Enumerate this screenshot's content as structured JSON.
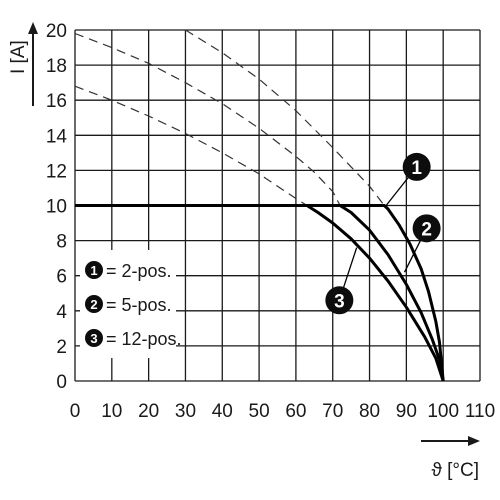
{
  "chart_data": {
    "type": "line",
    "xlabel": "ϑ [°C]",
    "ylabel": "I [A]",
    "xlim": [
      0,
      110
    ],
    "ylim": [
      0,
      20
    ],
    "x_ticks": [
      "0",
      "10",
      "20",
      "30",
      "40",
      "50",
      "60",
      "70",
      "80",
      "90",
      "100",
      "110"
    ],
    "y_ticks": [
      "0",
      "2",
      "4",
      "6",
      "8",
      "10",
      "12",
      "14",
      "16",
      "18",
      "20"
    ],
    "grid": true,
    "legend": [
      {
        "marker": "1",
        "label": "= 2-pos."
      },
      {
        "marker": "2",
        "label": "= 5-pos."
      },
      {
        "marker": "3",
        "label": "= 12-pos."
      }
    ],
    "legend_position": "lower-left",
    "colors": {
      "curves": "#000000",
      "grid": "#1a1a1a",
      "dashed": "#333333",
      "badge": "#0d0d0d"
    },
    "series": [
      {
        "marker": "1",
        "style": "solid",
        "x": [
          0,
          84,
          85,
          88,
          91,
          94,
          96,
          98,
          99,
          100
        ],
        "y": [
          10,
          10,
          9.8,
          8.9,
          7.8,
          6.4,
          5.1,
          3.4,
          2.2,
          0
        ]
      },
      {
        "marker": "2",
        "style": "solid",
        "x": [
          0,
          72,
          75,
          80,
          85,
          90,
          94,
          97,
          99,
          100
        ],
        "y": [
          10,
          10,
          9.6,
          8.6,
          7.2,
          5.5,
          3.9,
          2.4,
          1.2,
          0
        ]
      },
      {
        "marker": "3",
        "style": "solid",
        "x": [
          0,
          63,
          66,
          70,
          75,
          80,
          85,
          90,
          95,
          98,
          100
        ],
        "y": [
          10,
          10,
          9.6,
          9.0,
          8.1,
          7.0,
          5.7,
          4.2,
          2.5,
          1.3,
          0
        ]
      },
      {
        "marker": "1",
        "style": "dashed",
        "x": [
          30,
          40,
          50,
          60,
          70,
          75,
          80,
          84
        ],
        "y": [
          20,
          18.7,
          17.2,
          15.4,
          13.3,
          12.2,
          11.1,
          10
        ]
      },
      {
        "marker": "2",
        "style": "dashed",
        "x": [
          0,
          10,
          20,
          30,
          40,
          50,
          60,
          65,
          70,
          72
        ],
        "y": [
          19.8,
          19.0,
          18.1,
          17.0,
          15.8,
          14.4,
          12.8,
          11.9,
          10.8,
          10
        ]
      },
      {
        "marker": "3",
        "style": "dashed",
        "x": [
          0,
          10,
          20,
          30,
          40,
          50,
          55,
          60,
          63
        ],
        "y": [
          16.8,
          16.0,
          15.1,
          14.1,
          13.0,
          11.8,
          11.1,
          10.4,
          10
        ]
      }
    ],
    "callouts": [
      {
        "marker": "1",
        "x": 92.8,
        "y": 12.2,
        "target_x": 84.5,
        "target_y": 10
      },
      {
        "marker": "2",
        "x": 95.5,
        "y": 8.7,
        "target_x": 89.5,
        "target_y": 6.2
      },
      {
        "marker": "3",
        "x": 71.8,
        "y": 4.6,
        "target_x": 76.5,
        "target_y": 7.6
      }
    ]
  }
}
